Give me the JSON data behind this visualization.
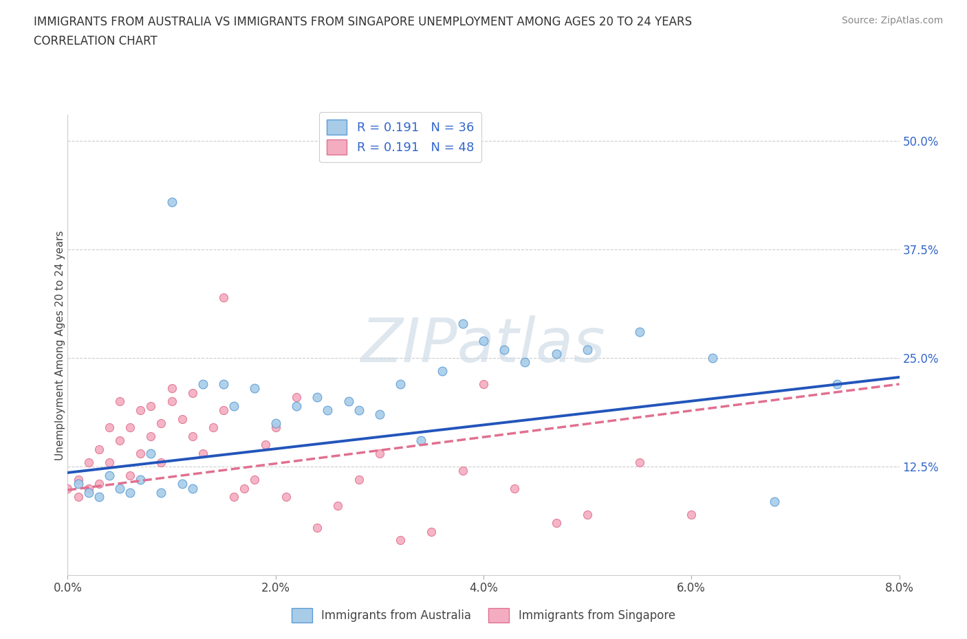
{
  "title_line1": "IMMIGRANTS FROM AUSTRALIA VS IMMIGRANTS FROM SINGAPORE UNEMPLOYMENT AMONG AGES 20 TO 24 YEARS",
  "title_line2": "CORRELATION CHART",
  "source_text": "Source: ZipAtlas.com",
  "ylabel": "Unemployment Among Ages 20 to 24 years",
  "xmin": 0.0,
  "xmax": 0.08,
  "ymin": 0.0,
  "ymax": 0.53,
  "yticks": [
    0.0,
    0.125,
    0.25,
    0.375,
    0.5
  ],
  "ytick_labels": [
    "",
    "12.5%",
    "25.0%",
    "37.5%",
    "50.0%"
  ],
  "xticks": [
    0.0,
    0.02,
    0.04,
    0.06,
    0.08
  ],
  "xtick_labels": [
    "0.0%",
    "2.0%",
    "4.0%",
    "6.0%",
    "8.0%"
  ],
  "australia_fill": "#a8cce8",
  "australia_edge": "#5b9bd5",
  "singapore_fill": "#f4adc0",
  "singapore_edge": "#e07090",
  "australia_line_color": "#2255bb",
  "singapore_line_color": "#e07090",
  "R_australia": 0.191,
  "N_australia": 36,
  "R_singapore": 0.191,
  "N_singapore": 48,
  "legend_label_australia": "Immigrants from Australia",
  "legend_label_singapore": "Immigrants from Singapore",
  "watermark": "ZIPatlas",
  "bg_color": "#ffffff",
  "grid_color": "#cccccc",
  "title_color": "#333333",
  "tick_label_color": "#3366cc",
  "australia_x": [
    0.001,
    0.002,
    0.003,
    0.004,
    0.005,
    0.006,
    0.007,
    0.008,
    0.009,
    0.01,
    0.011,
    0.012,
    0.013,
    0.015,
    0.016,
    0.018,
    0.02,
    0.022,
    0.024,
    0.025,
    0.027,
    0.028,
    0.03,
    0.032,
    0.034,
    0.036,
    0.038,
    0.04,
    0.042,
    0.044,
    0.047,
    0.05,
    0.055,
    0.062,
    0.068,
    0.074
  ],
  "australia_y": [
    0.105,
    0.095,
    0.09,
    0.115,
    0.1,
    0.095,
    0.11,
    0.14,
    0.095,
    0.43,
    0.105,
    0.1,
    0.22,
    0.22,
    0.195,
    0.215,
    0.175,
    0.195,
    0.205,
    0.19,
    0.2,
    0.19,
    0.185,
    0.22,
    0.155,
    0.235,
    0.29,
    0.27,
    0.26,
    0.245,
    0.255,
    0.26,
    0.28,
    0.25,
    0.085,
    0.22
  ],
  "singapore_x": [
    0.0,
    0.001,
    0.001,
    0.002,
    0.002,
    0.003,
    0.003,
    0.004,
    0.004,
    0.005,
    0.005,
    0.006,
    0.006,
    0.007,
    0.007,
    0.008,
    0.008,
    0.009,
    0.009,
    0.01,
    0.01,
    0.011,
    0.012,
    0.012,
    0.013,
    0.014,
    0.015,
    0.015,
    0.016,
    0.017,
    0.018,
    0.019,
    0.02,
    0.021,
    0.022,
    0.024,
    0.026,
    0.028,
    0.03,
    0.032,
    0.035,
    0.038,
    0.04,
    0.043,
    0.047,
    0.05,
    0.055,
    0.06
  ],
  "singapore_y": [
    0.1,
    0.11,
    0.09,
    0.13,
    0.1,
    0.145,
    0.105,
    0.17,
    0.13,
    0.155,
    0.2,
    0.17,
    0.115,
    0.19,
    0.14,
    0.195,
    0.16,
    0.175,
    0.13,
    0.2,
    0.215,
    0.18,
    0.16,
    0.21,
    0.14,
    0.17,
    0.32,
    0.19,
    0.09,
    0.1,
    0.11,
    0.15,
    0.17,
    0.09,
    0.205,
    0.055,
    0.08,
    0.11,
    0.14,
    0.04,
    0.05,
    0.12,
    0.22,
    0.1,
    0.06,
    0.07,
    0.13,
    0.07
  ]
}
